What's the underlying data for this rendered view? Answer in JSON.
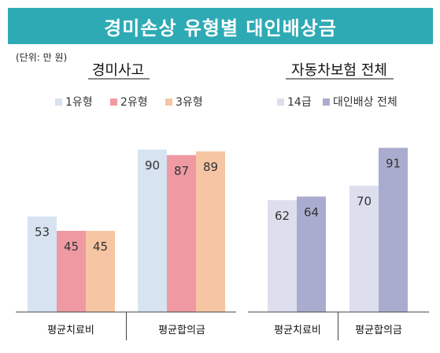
{
  "title": "경미손상 유형별 대인배상금",
  "unit_note": "(단위: 만 원)",
  "colors": {
    "banner": "#2eaab5",
    "type1": "#d7e3f1",
    "type2": "#ef9aa3",
    "type3": "#f6c5a3",
    "grade14": "#dedfee",
    "all": "#aaaccf",
    "axis": "#444444"
  },
  "chart_data": [
    {
      "type": "bar",
      "title": "경미사고",
      "categories": [
        "평균치료비",
        "평균합의금"
      ],
      "series": [
        {
          "name": "1유형",
          "values": [
            53,
            90
          ]
        },
        {
          "name": "2유형",
          "values": [
            45,
            87
          ]
        },
        {
          "name": "3유형",
          "values": [
            45,
            89
          ]
        }
      ],
      "ylim": [
        0,
        100
      ],
      "legend": "top",
      "grid": false,
      "data_labels": true
    },
    {
      "type": "bar",
      "title": "자동차보험 전체",
      "categories": [
        "평균치료비",
        "평균합의금"
      ],
      "series": [
        {
          "name": "14급",
          "values": [
            62,
            70
          ]
        },
        {
          "name": "대인배상 전체",
          "values": [
            64,
            91
          ]
        }
      ],
      "ylim": [
        0,
        100
      ],
      "legend": "top",
      "grid": false,
      "data_labels": true
    }
  ]
}
